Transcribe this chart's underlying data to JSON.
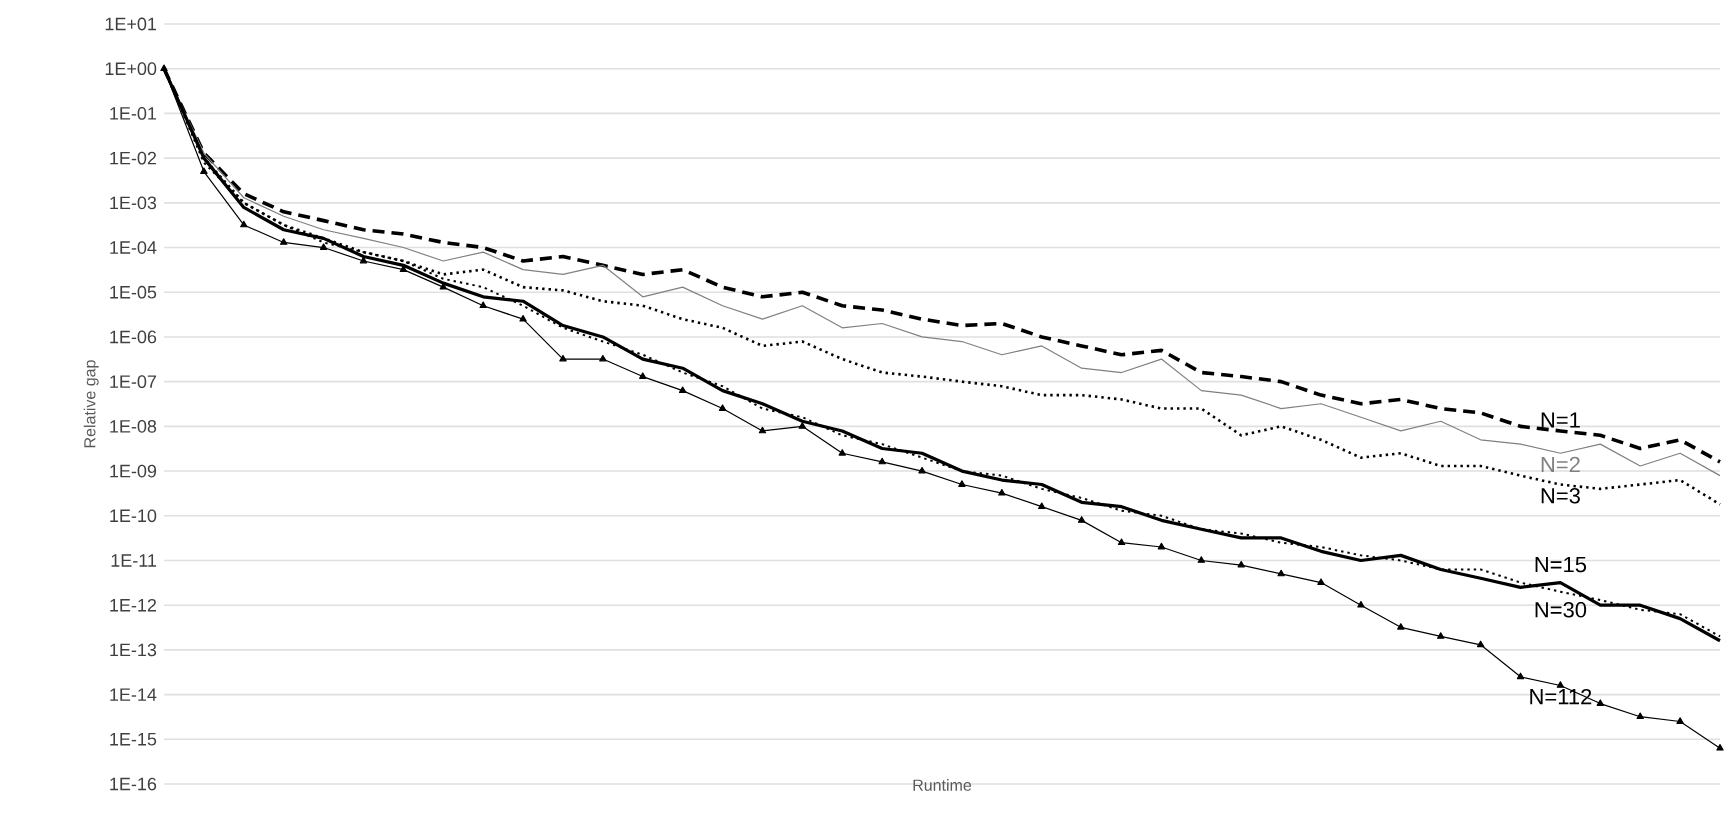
{
  "chart_data": {
    "type": "line",
    "xlabel": "Runtime",
    "ylabel": "Relative gap",
    "log": "y",
    "grid": "y",
    "tick_labels": "y",
    "categories": [
      null,
      null,
      null,
      null,
      null,
      null,
      null,
      null,
      null,
      null,
      null,
      null,
      null,
      null,
      null,
      null,
      null,
      null,
      null,
      null,
      null,
      null,
      null,
      null,
      null,
      null,
      null,
      null,
      null,
      null,
      null,
      null,
      null,
      null,
      null,
      null,
      null,
      null,
      null,
      null
    ],
    "ylim": [
      1e-16,
      10
    ],
    "yticks": [
      {
        "value": 10.0,
        "label": "1E+01"
      },
      {
        "value": 1.0,
        "label": "1E+00"
      },
      {
        "value": 0.1,
        "label": "1E-01"
      },
      {
        "value": 0.01,
        "label": "1E-02"
      },
      {
        "value": 0.001,
        "label": "1E-03"
      },
      {
        "value": 0.0001,
        "label": "1E-04"
      },
      {
        "value": 1e-05,
        "label": "1E-05"
      },
      {
        "value": 1e-06,
        "label": "1E-06"
      },
      {
        "value": 1e-07,
        "label": "1E-07"
      },
      {
        "value": 1e-08,
        "label": "1E-08"
      },
      {
        "value": 1e-09,
        "label": "1E-09"
      },
      {
        "value": 1e-10,
        "label": "1E-10"
      },
      {
        "value": 1e-11,
        "label": "1E-11"
      },
      {
        "value": 1e-12,
        "label": "1E-12"
      },
      {
        "value": 1e-13,
        "label": "1E-13"
      },
      {
        "value": 1e-14,
        "label": "1E-14"
      },
      {
        "value": 1e-15,
        "label": "1E-15"
      },
      {
        "value": 1e-16,
        "label": "1E-16"
      }
    ],
    "series": [
      {
        "name": "N=1",
        "color": "#000000",
        "line_style": "dashed",
        "values": [
          1,
          0.013,
          0.0016,
          0.00063,
          0.0004,
          0.00025,
          0.0002,
          0.00013,
          0.0001,
          5e-05,
          6.3e-05,
          4e-05,
          2.5e-05,
          3.2e-05,
          1.3e-05,
          7.9e-06,
          1e-05,
          5e-06,
          4e-06,
          2.5e-06,
          1.8e-06,
          2e-06,
          1e-06,
          6.3e-07,
          4e-07,
          5e-07,
          1.6e-07,
          1.3e-07,
          1e-07,
          5e-08,
          3.2e-08,
          4e-08,
          2.5e-08,
          2e-08,
          1e-08,
          7.9e-09,
          6.3e-09,
          3.2e-09,
          5e-09,
          1.6e-09
        ]
      },
      {
        "name": "N=2",
        "color": "#808080",
        "line_style": "solid",
        "values": [
          1,
          0.013,
          0.0013,
          0.0005,
          0.00025,
          0.00016,
          0.0001,
          5e-05,
          7.9e-05,
          3.2e-05,
          2.5e-05,
          4e-05,
          7.9e-06,
          1.3e-05,
          5e-06,
          2.5e-06,
          5e-06,
          1.6e-06,
          2e-06,
          1e-06,
          7.9e-07,
          4e-07,
          6.3e-07,
          2e-07,
          1.6e-07,
          3.2e-07,
          6.3e-08,
          5e-08,
          2.5e-08,
          3.2e-08,
          1.6e-08,
          7.9e-09,
          1.3e-08,
          5e-09,
          4e-09,
          2.5e-09,
          4e-09,
          1.3e-09,
          2.5e-09,
          7.9e-10
        ]
      },
      {
        "name": "N=3",
        "color": "#000000",
        "line_style": "dotted",
        "values": [
          1,
          0.01,
          0.001,
          0.00032,
          0.00016,
          7.9e-05,
          5e-05,
          2.5e-05,
          3.2e-05,
          1.3e-05,
          1.1e-05,
          6.3e-06,
          5e-06,
          2.5e-06,
          1.6e-06,
          6.3e-07,
          7.9e-07,
          3.2e-07,
          1.6e-07,
          1.3e-07,
          1e-07,
          7.9e-08,
          5e-08,
          5e-08,
          4e-08,
          2.5e-08,
          2.5e-08,
          6.3e-09,
          1e-08,
          5e-09,
          2e-09,
          2.5e-09,
          1.3e-09,
          1.3e-09,
          7.9e-10,
          5e-10,
          4e-10,
          5e-10,
          6.3e-10,
          1.8e-10
        ]
      },
      {
        "name": "N=15",
        "color": "#000000",
        "line_style": "dotted",
        "values": [
          1,
          0.0079,
          0.001,
          0.00032,
          0.00013,
          7.9e-05,
          5e-05,
          2e-05,
          1.3e-05,
          5e-06,
          1.6e-06,
          7.9e-07,
          4e-07,
          1.6e-07,
          7.9e-08,
          2.5e-08,
          1.6e-08,
          6.3e-09,
          4e-09,
          2e-09,
          1e-09,
          7.9e-10,
          4e-10,
          2.5e-10,
          1.3e-10,
          1e-10,
          5e-11,
          4e-11,
          2.5e-11,
          2e-11,
          1.3e-11,
          1e-11,
          6.3e-12,
          6.3e-12,
          3.2e-12,
          2e-12,
          1.3e-12,
          7.9e-13,
          6.3e-13,
          2e-13
        ]
      },
      {
        "name": "N=30",
        "color": "#000000",
        "line_style": "solid",
        "values": [
          1,
          0.01,
          0.00079,
          0.00025,
          0.00016,
          6.3e-05,
          4e-05,
          1.6e-05,
          7.9e-06,
          6.3e-06,
          1.8e-06,
          1e-06,
          3.2e-07,
          2e-07,
          6.3e-08,
          3.2e-08,
          1.3e-08,
          7.9e-09,
          3.2e-09,
          2.5e-09,
          1e-09,
          6.3e-10,
          5e-10,
          2e-10,
          1.6e-10,
          7.9e-11,
          5e-11,
          3.2e-11,
          3.2e-11,
          1.6e-11,
          1e-11,
          1.3e-11,
          6.3e-12,
          4e-12,
          2.5e-12,
          3.2e-12,
          1e-12,
          1e-12,
          5e-13,
          1.6e-13
        ]
      },
      {
        "name": "N=112",
        "color": "#000000",
        "line_style": "solid",
        "marker": "triangle",
        "values": [
          1,
          0.005,
          0.00032,
          0.00013,
          0.0001,
          5e-05,
          3.2e-05,
          1.3e-05,
          5e-06,
          2.5e-06,
          3.2e-07,
          3.2e-07,
          1.3e-07,
          6.3e-08,
          2.5e-08,
          7.9e-09,
          1e-08,
          2.5e-09,
          1.6e-09,
          1e-09,
          5e-10,
          3.2e-10,
          1.6e-10,
          7.9e-11,
          2.5e-11,
          2e-11,
          1e-11,
          7.9e-12,
          5e-12,
          3.2e-12,
          1e-12,
          3.2e-13,
          2e-13,
          1.3e-13,
          2.5e-14,
          1.6e-14,
          6.3e-15,
          3.2e-15,
          2.5e-15,
          6.3e-16
        ]
      }
    ]
  }
}
